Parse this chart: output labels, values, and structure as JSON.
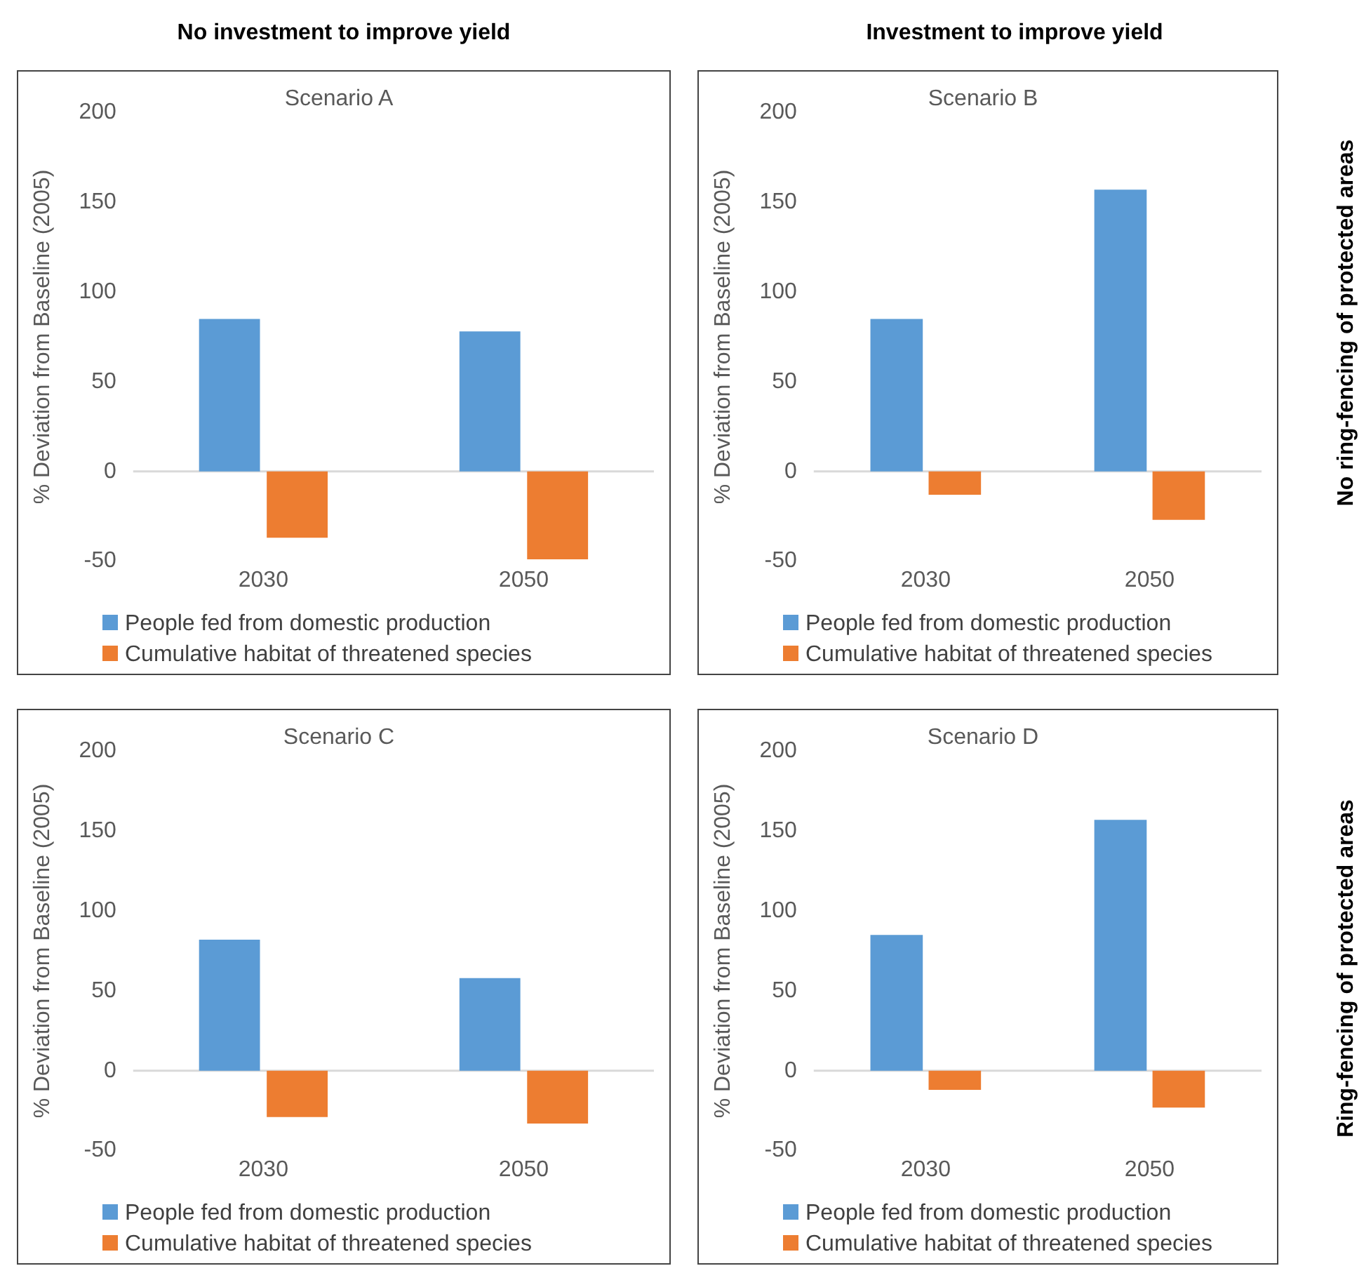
{
  "chart_data": [
    {
      "type": "bar",
      "title": "Scenario A",
      "ylabel": "% Deviation from Baseline (2005)",
      "categories": [
        "2030",
        "2050"
      ],
      "ylim": [
        -50,
        200
      ],
      "yticks": [
        -50,
        0,
        50,
        100,
        150,
        200
      ],
      "grid": false,
      "legend": "bottom",
      "ref_lines": [
        {
          "axis": "y",
          "value": 0,
          "color": "#d9d9d9"
        }
      ],
      "annotations": [
        "No investment to improve yield"
      ],
      "series": [
        {
          "name": "People fed from domestic production",
          "color": "#5b9bd5",
          "values": [
            85,
            78
          ]
        },
        {
          "name": "Cumulative habitat of threatened species",
          "color": "#ed7d31",
          "values": [
            -37,
            -49
          ]
        }
      ]
    },
    {
      "type": "bar",
      "title": "Scenario B",
      "ylabel": "% Deviation from Baseline (2005)",
      "categories": [
        "2030",
        "2050"
      ],
      "ylim": [
        -50,
        200
      ],
      "yticks": [
        -50,
        0,
        50,
        100,
        150,
        200
      ],
      "grid": false,
      "legend": "bottom",
      "ref_lines": [
        {
          "axis": "y",
          "value": 0,
          "color": "#d9d9d9"
        }
      ],
      "annotations": [
        "Investment to improve yield",
        "No ring-fencing of protected areas"
      ],
      "series": [
        {
          "name": "People fed from domestic production",
          "color": "#5b9bd5",
          "values": [
            85,
            157
          ]
        },
        {
          "name": "Cumulative habitat of threatened species",
          "color": "#ed7d31",
          "values": [
            -13,
            -27
          ]
        }
      ]
    },
    {
      "type": "bar",
      "title": "Scenario C",
      "ylabel": "% Deviation from Baseline (2005)",
      "categories": [
        "2030",
        "2050"
      ],
      "ylim": [
        -50,
        200
      ],
      "yticks": [
        -50,
        0,
        50,
        100,
        150,
        200
      ],
      "grid": false,
      "legend": "bottom",
      "ref_lines": [
        {
          "axis": "y",
          "value": 0,
          "color": "#d9d9d9"
        }
      ],
      "series": [
        {
          "name": "People fed from domestic production",
          "color": "#5b9bd5",
          "values": [
            82,
            58
          ]
        },
        {
          "name": "Cumulative habitat of threatened species",
          "color": "#ed7d31",
          "values": [
            -29,
            -33
          ]
        }
      ]
    },
    {
      "type": "bar",
      "title": "Scenario D",
      "ylabel": "% Deviation from Baseline (2005)",
      "categories": [
        "2030",
        "2050"
      ],
      "ylim": [
        -50,
        200
      ],
      "yticks": [
        -50,
        0,
        50,
        100,
        150,
        200
      ],
      "grid": false,
      "legend": "bottom",
      "ref_lines": [
        {
          "axis": "y",
          "value": 0,
          "color": "#d9d9d9"
        }
      ],
      "annotations": [
        "Ring-fencing of protected areas"
      ],
      "series": [
        {
          "name": "People fed from domestic production",
          "color": "#5b9bd5",
          "values": [
            85,
            157
          ]
        },
        {
          "name": "Cumulative habitat of threatened species",
          "color": "#ed7d31",
          "values": [
            -12,
            -23
          ]
        }
      ]
    }
  ]
}
